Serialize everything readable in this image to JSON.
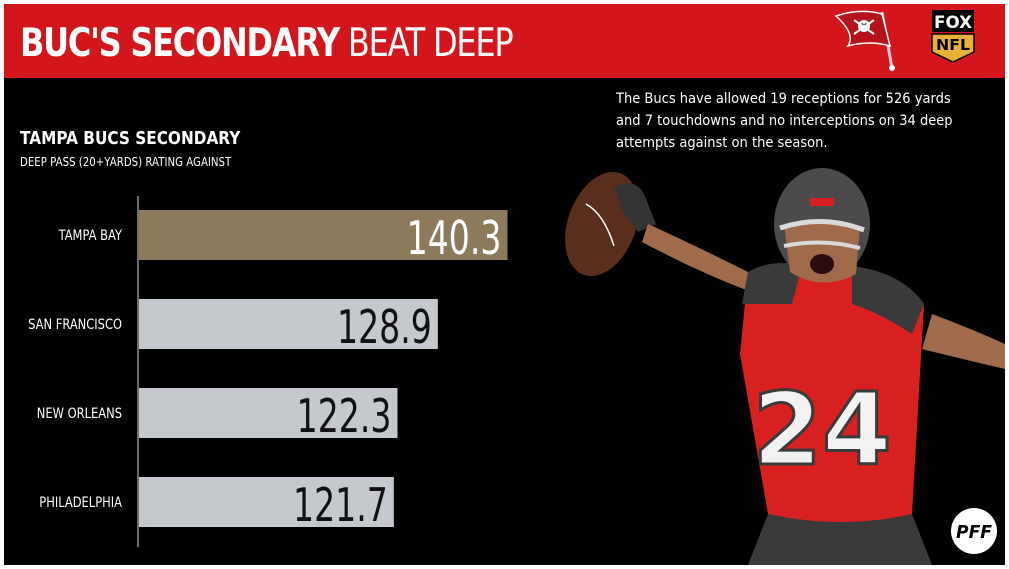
{
  "header": {
    "title_bold": "BUC'S SECONDARY",
    "title_light": "BEAT DEEP",
    "bucs_logo_icon": "buccaneers-flag-icon",
    "fox_logo_line1": "FOX",
    "fox_logo_line2": "NFL"
  },
  "colors": {
    "header_red": "#d3151c",
    "highlight_bar": "#8c7a5b",
    "other_bar": "#c5c9cd",
    "background": "#000000"
  },
  "note": "The Bucs have allowed 19 receptions for 526 yards and 7 touchdowns and no interceptions on 34 deep attempts against on the season.",
  "footer": {
    "pff_logo": "PFF"
  },
  "chart_data": {
    "type": "bar",
    "orientation": "horizontal",
    "title": "TAMPA BUCS SECONDARY",
    "subtitle": "DEEP PASS (20+YARDS) RATING AGAINST",
    "categories": [
      "TAMPA BAY",
      "SAN FRANCISCO",
      "NEW ORLEANS",
      "PHILADELPHIA"
    ],
    "values": [
      140.3,
      128.9,
      122.3,
      121.7
    ],
    "value_labels": [
      "140.3",
      "128.9",
      "122.3",
      "121.7"
    ],
    "highlight": "TAMPA BAY",
    "xlim": [
      80,
      143
    ],
    "grid": false,
    "legend": "none"
  }
}
